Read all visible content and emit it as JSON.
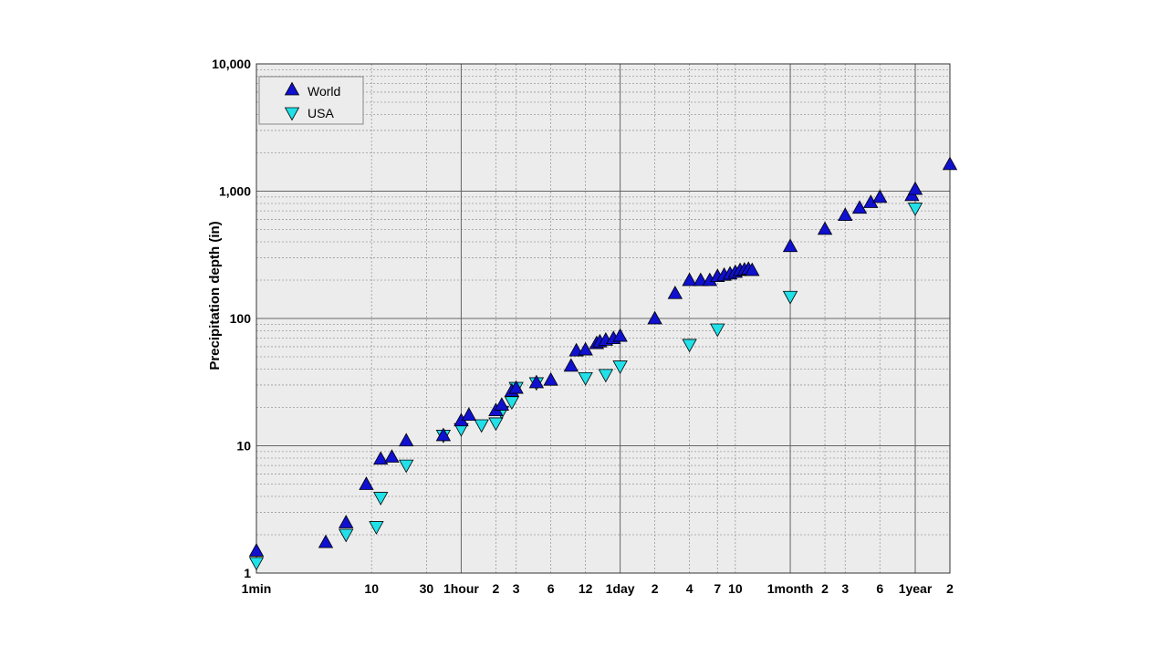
{
  "chart_data": {
    "type": "scatter",
    "title": "",
    "xlabel": "",
    "ylabel": "Precipitation depth (in)",
    "x_scale": "log",
    "y_scale": "log",
    "x_unit": "minutes",
    "xlim": [
      1,
      1051200
    ],
    "ylim": [
      1,
      10000
    ],
    "grid": true,
    "legend_position": "top-left",
    "x_ticks": [
      {
        "value": 1,
        "label": "1min"
      },
      {
        "value": 10,
        "label": "10"
      },
      {
        "value": 30,
        "label": "30"
      },
      {
        "value": 60,
        "label": "1hour"
      },
      {
        "value": 120,
        "label": "2"
      },
      {
        "value": 180,
        "label": "3"
      },
      {
        "value": 360,
        "label": "6"
      },
      {
        "value": 720,
        "label": "12"
      },
      {
        "value": 1440,
        "label": "1day"
      },
      {
        "value": 2880,
        "label": "2"
      },
      {
        "value": 5760,
        "label": "4"
      },
      {
        "value": 10080,
        "label": "7"
      },
      {
        "value": 14400,
        "label": "10"
      },
      {
        "value": 43200,
        "label": "1month"
      },
      {
        "value": 86400,
        "label": "2"
      },
      {
        "value": 129600,
        "label": "3"
      },
      {
        "value": 259200,
        "label": "6"
      },
      {
        "value": 525600,
        "label": "1year"
      },
      {
        "value": 1051200,
        "label": "2"
      }
    ],
    "y_ticks": [
      {
        "value": 1,
        "label": "1"
      },
      {
        "value": 10,
        "label": "10"
      },
      {
        "value": 100,
        "label": "100"
      },
      {
        "value": 1000,
        "label": "1,000"
      },
      {
        "value": 10000,
        "label": "10,000"
      }
    ],
    "major_x_gridlines": [
      60,
      1440,
      43200,
      525600
    ],
    "series": [
      {
        "name": "World",
        "marker": "triangle-up",
        "color": "#1010d0",
        "points": [
          [
            1,
            1.5
          ],
          [
            4,
            1.75
          ],
          [
            6,
            2.5
          ],
          [
            9,
            5.0
          ],
          [
            12,
            7.9
          ],
          [
            15,
            8.2
          ],
          [
            20,
            11.0
          ],
          [
            42,
            12.1
          ],
          [
            60,
            15.8
          ],
          [
            70,
            17.5
          ],
          [
            120,
            19.0
          ],
          [
            135,
            21.0
          ],
          [
            165,
            27.0
          ],
          [
            180,
            28.5
          ],
          [
            270,
            31.5
          ],
          [
            360,
            33.0
          ],
          [
            540,
            42.5
          ],
          [
            600,
            56.0
          ],
          [
            720,
            57.0
          ],
          [
            900,
            64.0
          ],
          [
            960,
            66.0
          ],
          [
            1080,
            68.0
          ],
          [
            1260,
            70.0
          ],
          [
            1440,
            73.0
          ],
          [
            2880,
            100.0
          ],
          [
            4320,
            158.0
          ],
          [
            5760,
            200.0
          ],
          [
            7200,
            200.0
          ],
          [
            8640,
            200.0
          ],
          [
            10080,
            215.0
          ],
          [
            11520,
            220.0
          ],
          [
            12960,
            225.0
          ],
          [
            14400,
            232.0
          ],
          [
            15840,
            240.0
          ],
          [
            17280,
            242.0
          ],
          [
            18720,
            245.0
          ],
          [
            20160,
            240.0
          ],
          [
            43200,
            370.0
          ],
          [
            86400,
            505.0
          ],
          [
            129600,
            650.0
          ],
          [
            172800,
            740.0
          ],
          [
            216000,
            820.0
          ],
          [
            259200,
            900.0
          ],
          [
            492000,
            930.0
          ],
          [
            525600,
            1040.0
          ],
          [
            1051200,
            1630.0
          ]
        ]
      },
      {
        "name": "USA",
        "marker": "triangle-down",
        "color": "#22e0e8",
        "points": [
          [
            1,
            1.2
          ],
          [
            6,
            2.0
          ],
          [
            12,
            3.9
          ],
          [
            11,
            2.3
          ],
          [
            20,
            7.0
          ],
          [
            42,
            12.0
          ],
          [
            60,
            13.5
          ],
          [
            90,
            14.5
          ],
          [
            120,
            15.0
          ],
          [
            135,
            18.5
          ],
          [
            165,
            22.0
          ],
          [
            180,
            28.5
          ],
          [
            270,
            31.0
          ],
          [
            720,
            34.0
          ],
          [
            1080,
            36.0
          ],
          [
            1440,
            42.0
          ],
          [
            5760,
            62.0
          ],
          [
            10080,
            82.0
          ],
          [
            43200,
            148.0
          ],
          [
            525600,
            730.0
          ]
        ]
      }
    ]
  }
}
